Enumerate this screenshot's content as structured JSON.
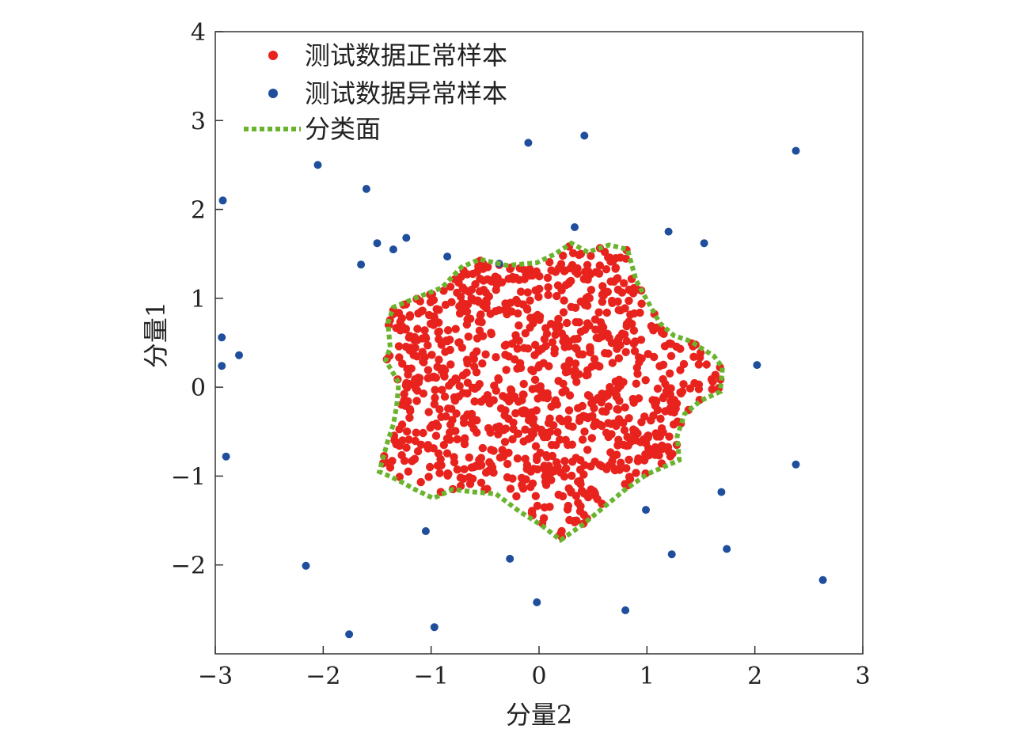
{
  "chart_data": {
    "type": "scatter",
    "xlabel": "分量2",
    "ylabel": "分量1",
    "xlim": [
      -3,
      3
    ],
    "ylim": [
      -3,
      4
    ],
    "xticks": [
      -3,
      -2,
      -1,
      0,
      1,
      2,
      3
    ],
    "yticks": [
      -2,
      -1,
      0,
      1,
      2,
      3,
      4
    ],
    "xtick_labels": [
      "−3",
      "−2",
      "−1",
      "0",
      "1",
      "2",
      "3"
    ],
    "ytick_labels": [
      "−2",
      "−1",
      "0",
      "1",
      "2",
      "3",
      "4"
    ],
    "grid": false,
    "legend_position": "top-left",
    "legend": [
      {
        "label": "测试数据正常样本",
        "marker": "dot",
        "color": "#e8231e"
      },
      {
        "label": "测试数据异常样本",
        "marker": "dot",
        "color": "#1f4e9c"
      },
      {
        "label": "分类面",
        "marker": "dotted-line",
        "color": "#6ab42d"
      }
    ],
    "normal_cluster": {
      "color": "#e8231e",
      "approx_count": 1000,
      "center": [
        0.0,
        0.0
      ],
      "fills_boundary": true
    },
    "anomalies": {
      "color": "#1f4e9c",
      "points": [
        [
          -2.05,
          2.5
        ],
        [
          -2.93,
          2.1
        ],
        [
          -1.6,
          2.23
        ],
        [
          -1.5,
          1.62
        ],
        [
          -1.35,
          1.55
        ],
        [
          -1.23,
          1.68
        ],
        [
          -1.65,
          1.38
        ],
        [
          -0.85,
          1.47
        ],
        [
          -0.37,
          1.39
        ],
        [
          -0.1,
          2.75
        ],
        [
          0.42,
          2.83
        ],
        [
          0.33,
          1.8
        ],
        [
          1.2,
          1.75
        ],
        [
          1.53,
          1.62
        ],
        [
          2.38,
          2.66
        ],
        [
          -2.94,
          0.56
        ],
        [
          -2.94,
          0.24
        ],
        [
          -2.78,
          0.36
        ],
        [
          -2.9,
          -0.78
        ],
        [
          2.02,
          0.25
        ],
        [
          0.99,
          -1.38
        ],
        [
          1.69,
          -1.18
        ],
        [
          2.38,
          -0.87
        ],
        [
          -1.05,
          -1.62
        ],
        [
          -0.27,
          -1.93
        ],
        [
          1.23,
          -1.88
        ],
        [
          1.74,
          -1.82
        ],
        [
          2.63,
          -2.17
        ],
        [
          -2.16,
          -2.01
        ],
        [
          -1.76,
          -2.78
        ],
        [
          -0.97,
          -2.7
        ],
        [
          -0.02,
          -2.42
        ],
        [
          0.8,
          -2.51
        ]
      ]
    },
    "decision_boundary": {
      "color": "#6ab42d",
      "style": "dotted",
      "points": [
        [
          -1.38,
          0.45
        ],
        [
          -1.4,
          0.72
        ],
        [
          -1.35,
          0.9
        ],
        [
          -1.15,
          1.0
        ],
        [
          -0.9,
          1.12
        ],
        [
          -0.72,
          1.35
        ],
        [
          -0.55,
          1.44
        ],
        [
          -0.3,
          1.37
        ],
        [
          -0.02,
          1.4
        ],
        [
          0.15,
          1.5
        ],
        [
          0.3,
          1.62
        ],
        [
          0.45,
          1.52
        ],
        [
          0.65,
          1.6
        ],
        [
          0.82,
          1.55
        ],
        [
          0.9,
          1.2
        ],
        [
          1.0,
          0.98
        ],
        [
          1.12,
          0.72
        ],
        [
          1.25,
          0.58
        ],
        [
          1.4,
          0.52
        ],
        [
          1.62,
          0.35
        ],
        [
          1.7,
          0.22
        ],
        [
          1.68,
          -0.05
        ],
        [
          1.5,
          -0.15
        ],
        [
          1.35,
          -0.3
        ],
        [
          1.28,
          -0.55
        ],
        [
          1.3,
          -0.82
        ],
        [
          1.15,
          -0.9
        ],
        [
          1.0,
          -0.98
        ],
        [
          0.8,
          -1.15
        ],
        [
          0.55,
          -1.4
        ],
        [
          0.4,
          -1.55
        ],
        [
          0.2,
          -1.72
        ],
        [
          0.02,
          -1.55
        ],
        [
          -0.18,
          -1.4
        ],
        [
          -0.4,
          -1.2
        ],
        [
          -0.6,
          -1.18
        ],
        [
          -0.8,
          -1.15
        ],
        [
          -0.98,
          -1.25
        ],
        [
          -1.15,
          -1.15
        ],
        [
          -1.3,
          -1.05
        ],
        [
          -1.48,
          -0.95
        ],
        [
          -1.4,
          -0.6
        ],
        [
          -1.35,
          -0.42
        ],
        [
          -1.32,
          -0.22
        ],
        [
          -1.3,
          0.05
        ],
        [
          -1.42,
          0.3
        ],
        [
          -1.38,
          0.45
        ]
      ]
    }
  }
}
